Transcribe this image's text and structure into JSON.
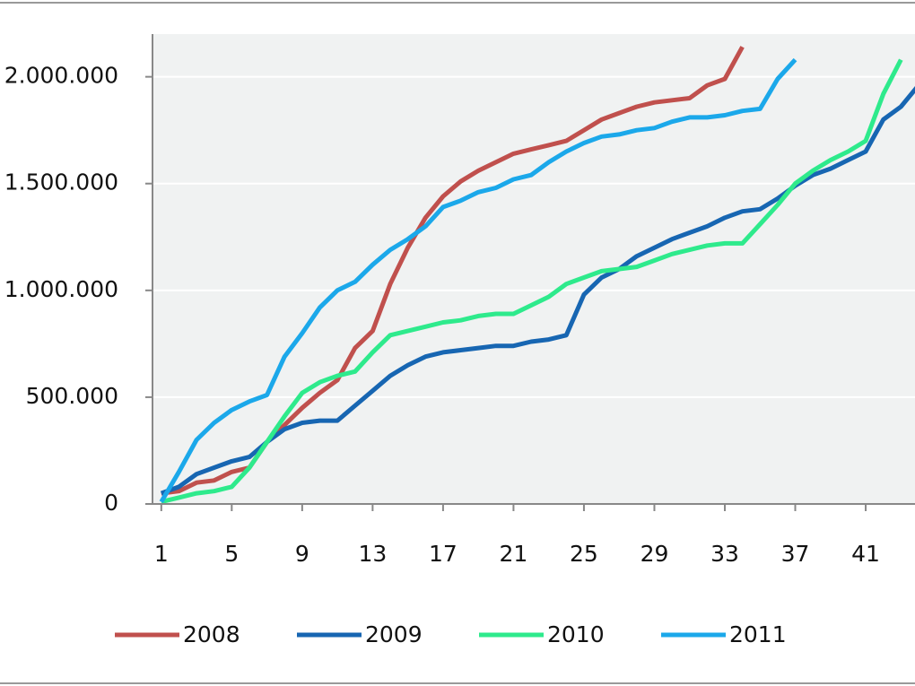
{
  "chart_data": {
    "type": "line",
    "x": [
      1,
      2,
      3,
      4,
      5,
      6,
      7,
      8,
      9,
      10,
      11,
      12,
      13,
      14,
      15,
      16,
      17,
      18,
      19,
      20,
      21,
      22,
      23,
      24,
      25,
      26,
      27,
      28,
      29,
      30,
      31,
      32,
      33,
      34,
      35,
      36,
      37,
      38,
      39,
      40,
      41,
      42,
      43,
      44
    ],
    "series": [
      {
        "name": "2008",
        "color": "#c0504d",
        "values": [
          50000,
          60000,
          100000,
          110000,
          150000,
          170000,
          290000,
          370000,
          450000,
          520000,
          580000,
          730000,
          810000,
          1030000,
          1200000,
          1340000,
          1440000,
          1510000,
          1560000,
          1600000,
          1640000,
          1660000,
          1680000,
          1700000,
          1750000,
          1800000,
          1830000,
          1860000,
          1880000,
          1890000,
          1900000,
          1960000,
          1990000,
          2140000,
          null,
          null,
          null,
          null,
          null,
          null,
          null,
          null,
          null,
          null
        ]
      },
      {
        "name": "2009",
        "color": "#1766b2",
        "values": [
          50000,
          80000,
          140000,
          170000,
          200000,
          220000,
          290000,
          350000,
          380000,
          390000,
          390000,
          460000,
          530000,
          600000,
          650000,
          690000,
          710000,
          720000,
          730000,
          740000,
          740000,
          760000,
          770000,
          790000,
          980000,
          1060000,
          1100000,
          1160000,
          1200000,
          1240000,
          1270000,
          1300000,
          1340000,
          1370000,
          1380000,
          1430000,
          1490000,
          1540000,
          1570000,
          1610000,
          1650000,
          1800000,
          1860000,
          1960000
        ]
      },
      {
        "name": "2010",
        "color": "#2eea8c",
        "values": [
          10000,
          30000,
          50000,
          60000,
          80000,
          170000,
          290000,
          410000,
          520000,
          570000,
          600000,
          620000,
          710000,
          790000,
          810000,
          830000,
          850000,
          860000,
          880000,
          890000,
          890000,
          930000,
          970000,
          1030000,
          1060000,
          1090000,
          1100000,
          1110000,
          1140000,
          1170000,
          1190000,
          1210000,
          1220000,
          1220000,
          1310000,
          1400000,
          1500000,
          1560000,
          1610000,
          1650000,
          1700000,
          1920000,
          2080000,
          null
        ]
      },
      {
        "name": "2011",
        "color": "#1ba8ea",
        "values": [
          10000,
          150000,
          300000,
          380000,
          440000,
          480000,
          510000,
          690000,
          800000,
          920000,
          1000000,
          1040000,
          1120000,
          1190000,
          1240000,
          1300000,
          1390000,
          1420000,
          1460000,
          1480000,
          1520000,
          1540000,
          1600000,
          1650000,
          1690000,
          1720000,
          1730000,
          1750000,
          1760000,
          1790000,
          1810000,
          1810000,
          1820000,
          1840000,
          1850000,
          1990000,
          2080000,
          null,
          null,
          null,
          null,
          null,
          null,
          null
        ]
      }
    ],
    "xlim": [
      0.5,
      43.8
    ],
    "xticks": [
      1,
      5,
      9,
      13,
      17,
      21,
      25,
      29,
      33,
      37,
      41
    ],
    "ylim": [
      0,
      2200000
    ],
    "yticks": [
      0,
      {
        "value": 500000,
        "label": "500.000"
      },
      {
        "value": 1000000,
        "label": "1.000.000"
      },
      {
        "value": 1500000,
        "label": "1.500.000"
      },
      {
        "value": 2000000,
        "label": "2.000.000"
      }
    ],
    "grid": true,
    "legend": "bottom"
  }
}
